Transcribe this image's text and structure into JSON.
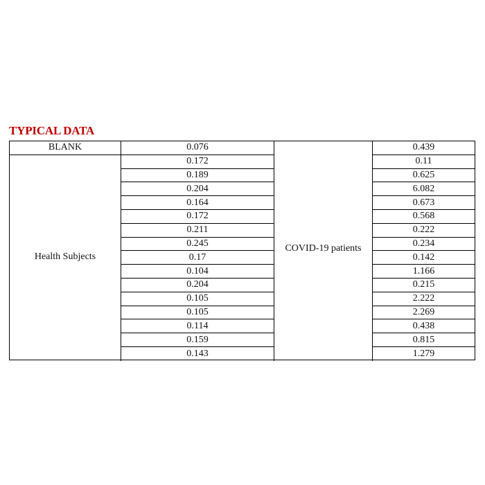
{
  "title": "TYPICAL DATA",
  "table": {
    "blank_label": "BLANK",
    "blank_value": "0.076",
    "healthy_label": "Health Subjects",
    "healthy_values": [
      "0.172",
      "0.189",
      "0.204",
      "0.164",
      "0.172",
      "0.211",
      "0.245",
      "0.17",
      "0.104",
      "0.204",
      "0.105",
      "0.105",
      "0.114",
      "0.159",
      "0.143"
    ],
    "covid_label": "COVID-19 patients",
    "covid_values": [
      "0.439",
      "0.11",
      "0.625",
      "6.082",
      "0.673",
      "0.568",
      "0.222",
      "0.234",
      "0.142",
      "1.166",
      "0.215",
      "2.222",
      "2.269",
      "0.438",
      "0.815",
      "1.279"
    ]
  },
  "colors": {
    "title": "#c00000"
  }
}
